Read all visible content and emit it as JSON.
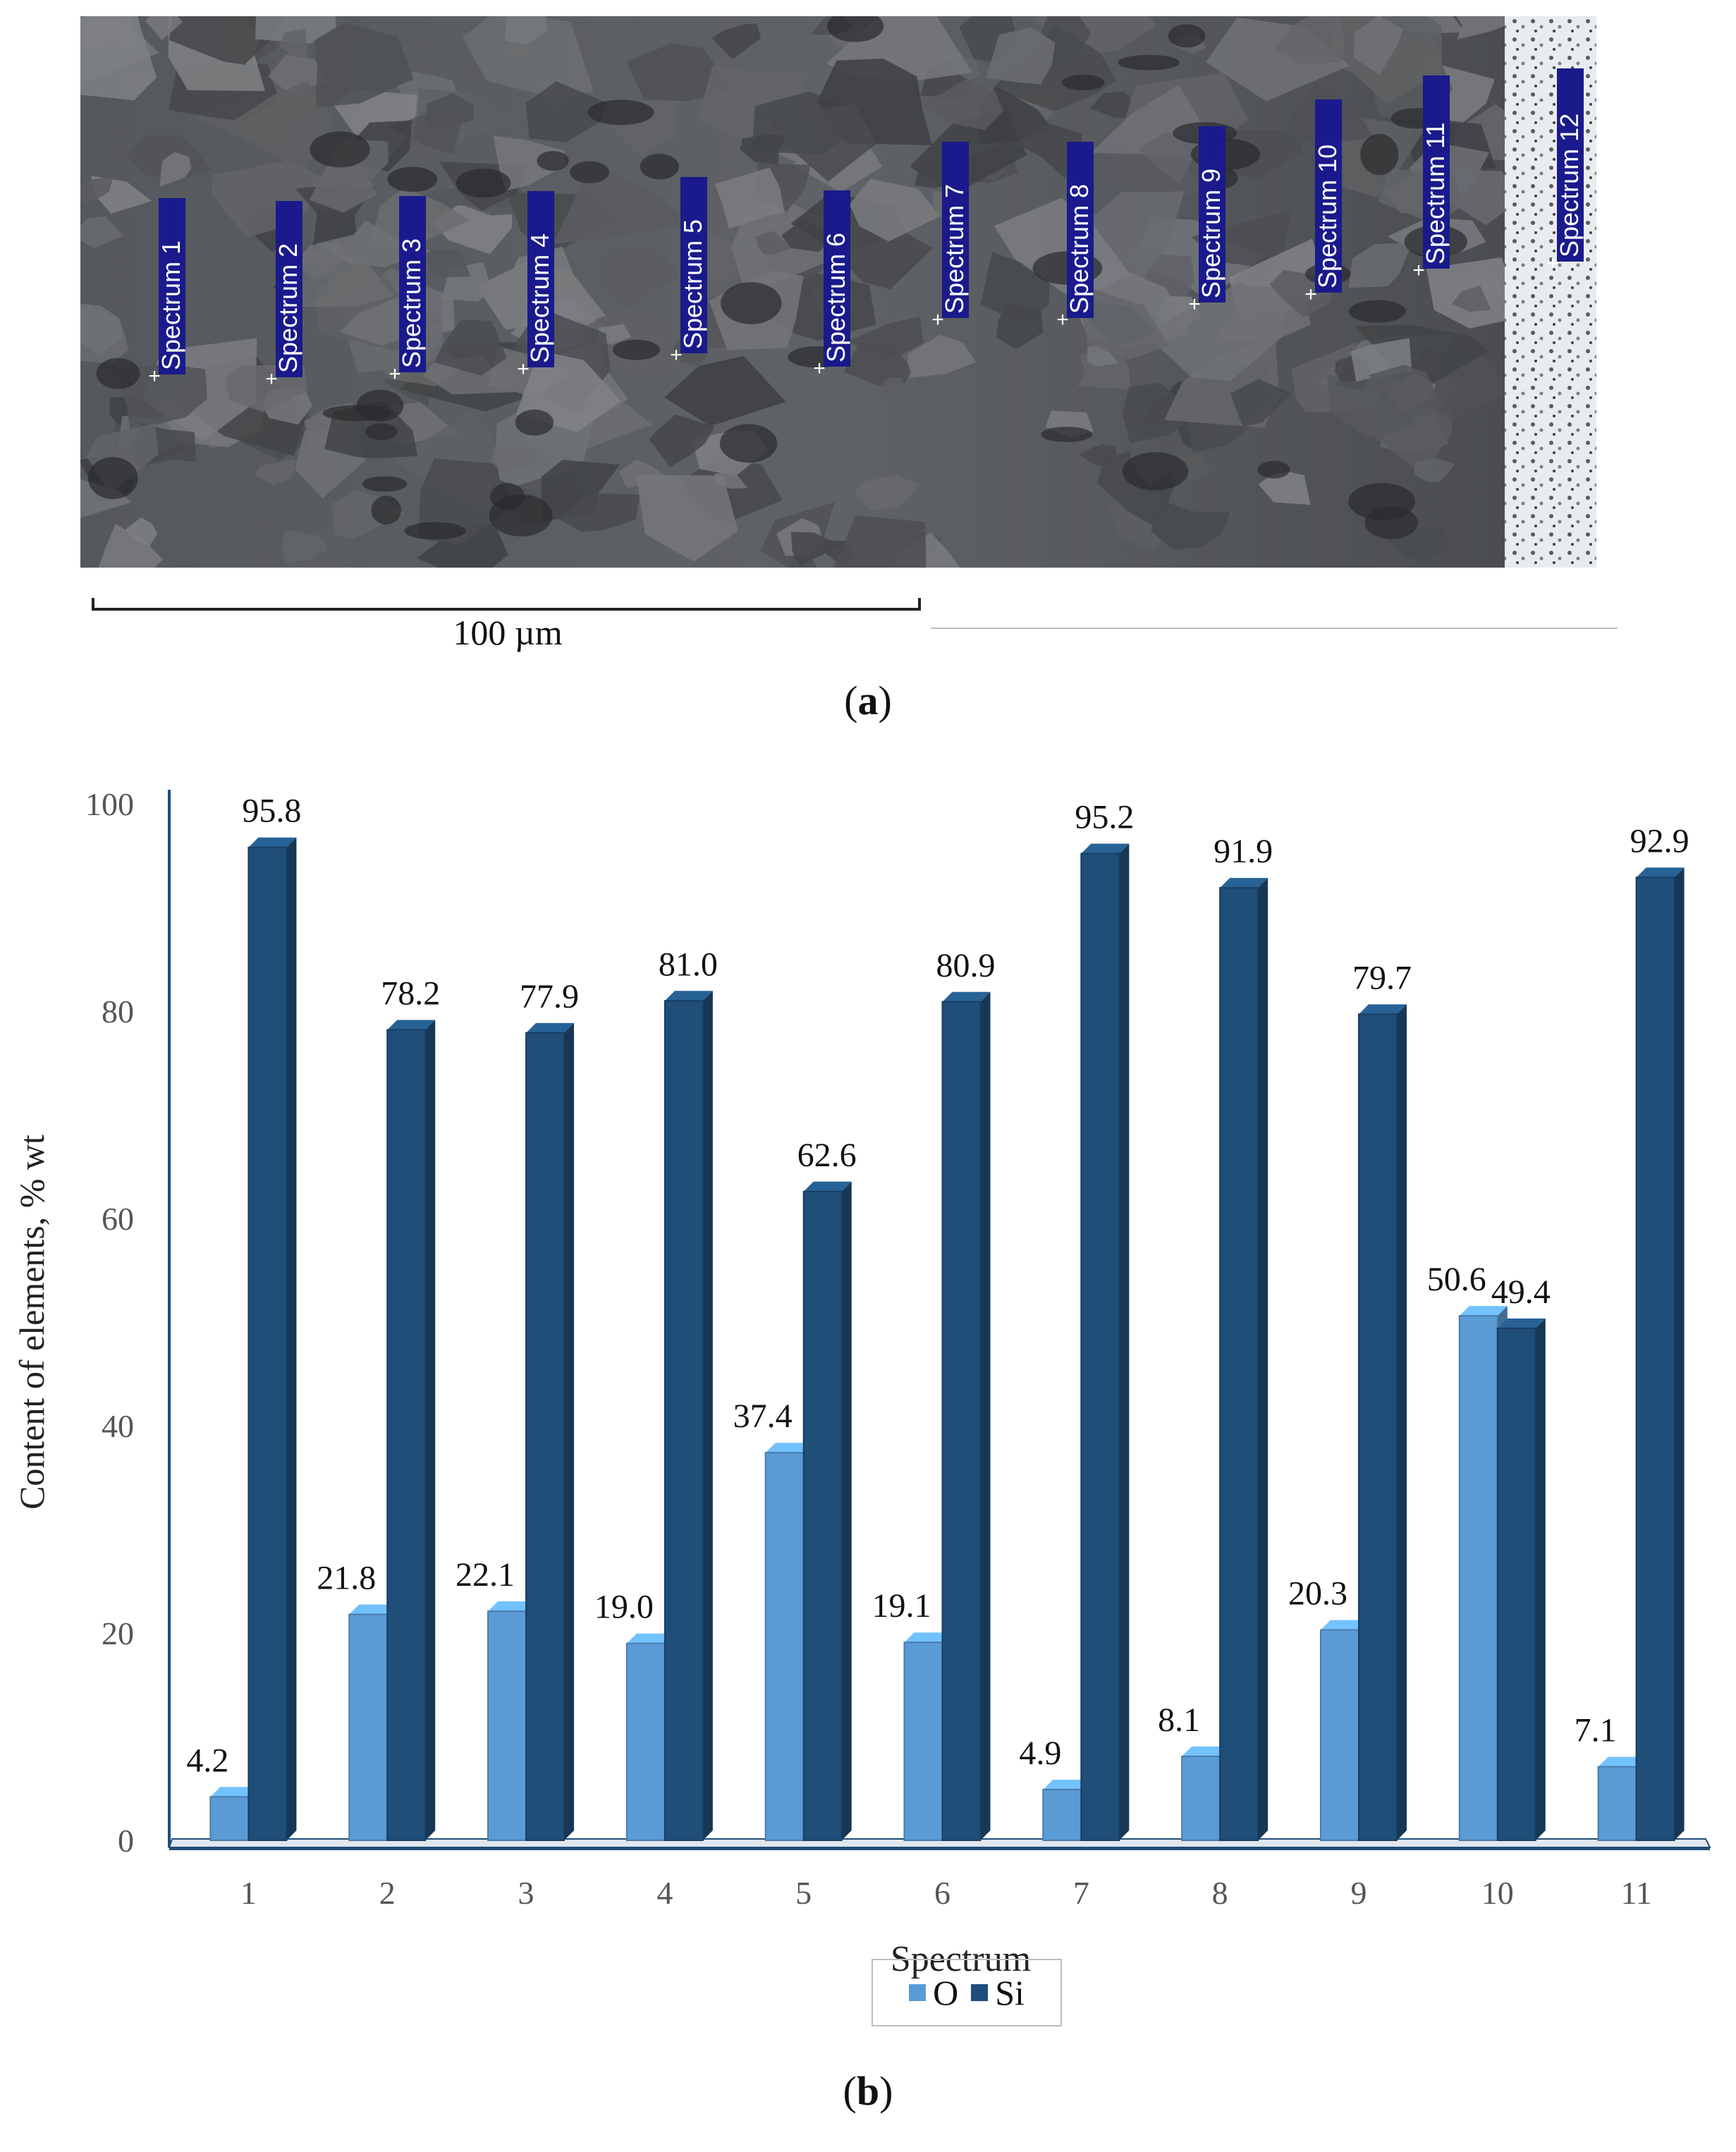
{
  "panel_a": {
    "caption_letter": "a",
    "scale_label": "100 µm",
    "spectrum_labels": [
      "Spectrum 1",
      "Spectrum 2",
      "Spectrum 3",
      "Spectrum 4",
      "Spectrum 5",
      "Spectrum 6",
      "Spectrum 7",
      "Spectrum 8",
      "Spectrum 9",
      "Spectrum 10",
      "Spectrum 11",
      "Spectrum 12"
    ]
  },
  "panel_b": {
    "caption_letter": "b"
  },
  "chart_data": {
    "type": "bar",
    "style": "3d-clustered",
    "categories": [
      "1",
      "2",
      "3",
      "4",
      "5",
      "6",
      "7",
      "8",
      "9",
      "10",
      "11"
    ],
    "series": [
      {
        "name": "O",
        "color": "#5b9bd5",
        "values": [
          4.2,
          21.8,
          22.1,
          19.0,
          37.4,
          19.1,
          4.9,
          8.1,
          20.3,
          50.6,
          7.1
        ]
      },
      {
        "name": "Si",
        "color": "#1f4e79",
        "values": [
          95.8,
          78.2,
          77.9,
          81.0,
          62.6,
          80.9,
          95.2,
          91.9,
          79.7,
          49.4,
          92.9
        ]
      }
    ],
    "data_labels": {
      "O": [
        "4.2",
        "21.8",
        "22.1",
        "19.0",
        "37.4",
        "19.1",
        "4.9",
        "8.1",
        "20.3",
        "50.6",
        "7.1"
      ],
      "Si": [
        "95.8",
        "78.2",
        "77.9",
        "81.0",
        "62.6",
        "80.9",
        "95.2",
        "91.9",
        "79.7",
        "49.4",
        "92.9"
      ]
    },
    "xlabel": "Spectrum",
    "ylabel": "Content of elements, % wt",
    "ylim": [
      0,
      100
    ],
    "yticks": [
      "0",
      "20",
      "40",
      "60",
      "80",
      "100"
    ],
    "grid": false,
    "legend_position": "bottom"
  }
}
